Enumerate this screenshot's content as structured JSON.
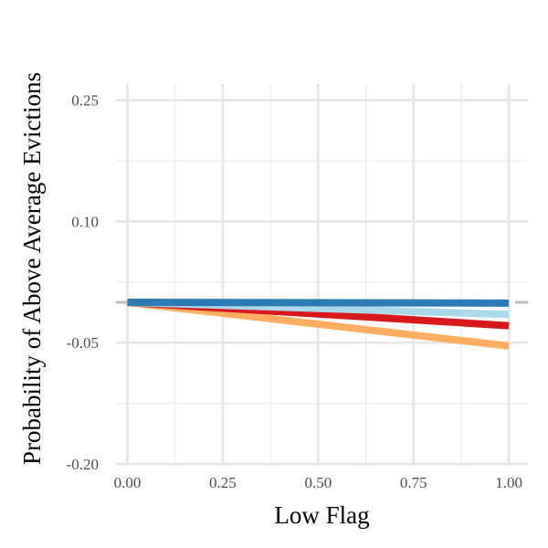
{
  "chart_data": {
    "type": "line",
    "xlabel": "Low Flag",
    "ylabel": "Probability of Above Average Evictions",
    "xlim": [
      -0.03,
      1.05
    ],
    "ylim": [
      -0.2,
      0.27
    ],
    "x_ticks": [
      0.0,
      0.25,
      0.5,
      0.75,
      1.0
    ],
    "x_tick_labels": [
      "0.00",
      "0.25",
      "0.50",
      "0.75",
      "1.00"
    ],
    "y_ticks": [
      0.25,
      0.1,
      -0.05,
      -0.2
    ],
    "y_tick_labels": [
      "0.25",
      "0.10",
      "-0.05",
      "-0.20"
    ],
    "grid": true,
    "reference_line": {
      "y": 0.0,
      "style": "dashed",
      "color": "#bdbdbd"
    },
    "series": [
      {
        "color": "#FDAE61",
        "x": [
          0,
          1
        ],
        "y": [
          0.0,
          -0.054
        ]
      },
      {
        "color": "#D7191C",
        "x": [
          0,
          1
        ],
        "y": [
          0.0,
          -0.029
        ]
      },
      {
        "color": "#ABD9E9",
        "x": [
          0,
          1
        ],
        "y": [
          0.0,
          -0.015
        ]
      },
      {
        "color": "#2C7BB6",
        "x": [
          0,
          1
        ],
        "y": [
          0.0,
          -0.001
        ]
      }
    ]
  }
}
